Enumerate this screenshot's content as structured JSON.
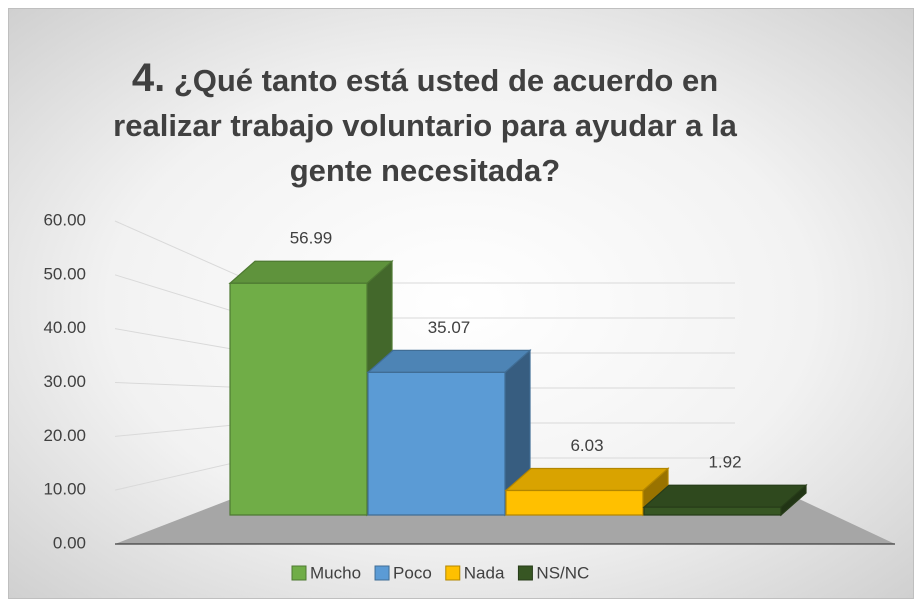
{
  "chart_data": {
    "type": "bar3d",
    "title_number": "4.",
    "title": "¿Qué tanto está usted de acuerdo en realizar trabajo voluntario para ayudar a la gente necesitada?",
    "categories": [
      "Mucho",
      "Poco",
      "Nada",
      "NS/NC"
    ],
    "values": [
      56.99,
      35.07,
      6.03,
      1.92
    ],
    "colors": [
      "#70ad47",
      "#5b9bd5",
      "#ffc000",
      "#375623"
    ],
    "ylim": [
      0,
      60
    ],
    "yticks": [
      {
        "value": 0,
        "label": "0.00"
      },
      {
        "value": 10,
        "label": "10.00"
      },
      {
        "value": 20,
        "label": "20.00"
      },
      {
        "value": 30,
        "label": "30.00"
      },
      {
        "value": 40,
        "label": "40.00"
      },
      {
        "value": 50,
        "label": "50.00"
      },
      {
        "value": 60,
        "label": "60.00"
      }
    ],
    "grid": true,
    "legend": "bottom"
  }
}
